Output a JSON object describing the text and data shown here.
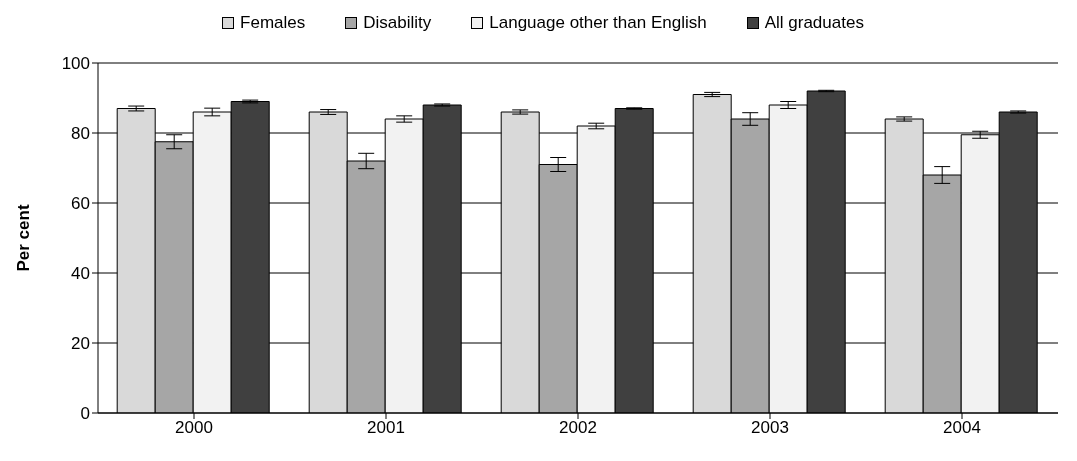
{
  "chart_data": {
    "type": "bar",
    "ylabel": "Per cent",
    "categories": [
      "2000",
      "2001",
      "2002",
      "2003",
      "2004"
    ],
    "series": [
      {
        "name": "Females",
        "color": "#d9d9d9",
        "values": [
          87,
          86,
          86,
          91,
          84
        ],
        "errors": [
          0.7,
          0.7,
          0.6,
          0.6,
          0.6
        ]
      },
      {
        "name": "Disability",
        "color": "#a6a6a6",
        "values": [
          77.5,
          72,
          71,
          84,
          68
        ],
        "errors": [
          2,
          2.2,
          2,
          1.8,
          2.4
        ]
      },
      {
        "name": "Language other than English",
        "color": "#f2f2f2",
        "values": [
          86,
          84,
          82,
          88,
          79.5
        ],
        "errors": [
          1.1,
          0.9,
          0.8,
          1,
          1
        ]
      },
      {
        "name": "All graduates",
        "color": "#404040",
        "values": [
          89,
          88,
          87,
          92,
          86
        ],
        "errors": [
          0.4,
          0.3,
          0.2,
          0.2,
          0.3
        ]
      }
    ],
    "ylim": [
      0,
      100
    ],
    "yticks": [
      0,
      20,
      40,
      60,
      80,
      100
    ],
    "grid": "y",
    "legend": "top"
  }
}
